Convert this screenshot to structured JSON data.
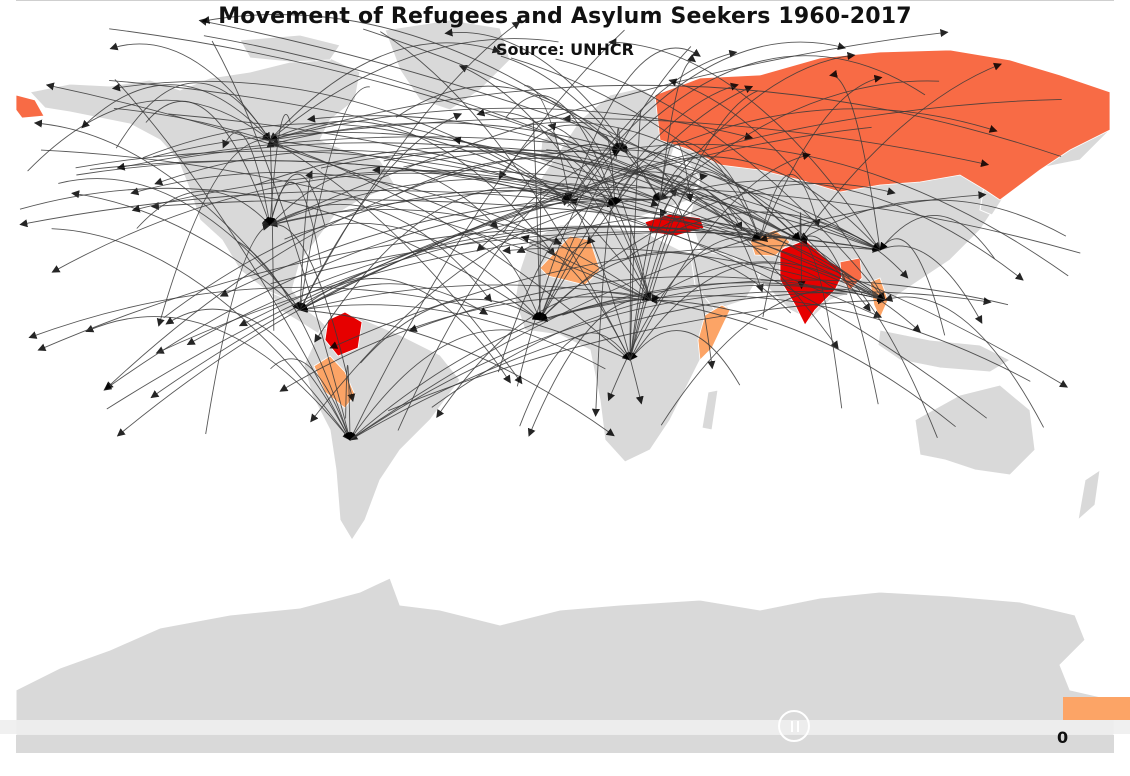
{
  "title": "Movement of Refugees and Asylum Seekers 1960-2017",
  "subtitle": "Source: UNHCR",
  "legend": {
    "value_label": "0",
    "color": "#fca466"
  },
  "colors": {
    "land": "#d9d9d9",
    "high": "#e60000",
    "mid": "#f86b45",
    "low": "#fca466",
    "flow_line": "#3a3a3a",
    "arrowhead": "#000000",
    "background": "#ffffff"
  },
  "highlighted_countries": [
    {
      "name": "Russia",
      "level": "mid"
    },
    {
      "name": "India",
      "level": "high"
    },
    {
      "name": "Colombia",
      "level": "high"
    },
    {
      "name": "Peru",
      "level": "low"
    },
    {
      "name": "Mali",
      "level": "low"
    },
    {
      "name": "Turkey",
      "level": "high"
    },
    {
      "name": "Afghanistan",
      "level": "low"
    },
    {
      "name": "Somalia",
      "level": "low"
    },
    {
      "name": "Myanmar",
      "level": "mid"
    },
    {
      "name": "Vietnam",
      "level": "low"
    }
  ],
  "controls": {
    "play_pause_icon": "pause-icon"
  }
}
